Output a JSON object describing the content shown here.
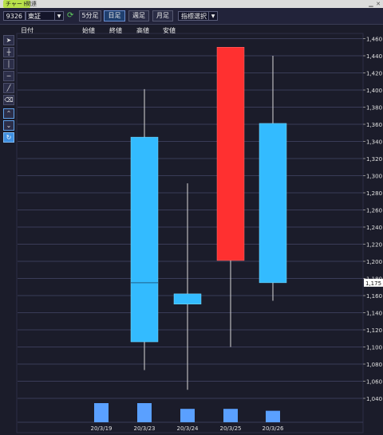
{
  "window": {
    "tab_chart": "チャート",
    "tab_related": "関連"
  },
  "toolbar": {
    "code": "9326",
    "market": "東証",
    "refresh_icon": "refresh-icon",
    "periods": [
      "5分足",
      "日足",
      "週足",
      "月足"
    ],
    "active_period": "日足",
    "indicator_select": "指標選択"
  },
  "header": {
    "date": "日付",
    "open": "始値",
    "close": "終値",
    "high": "高値",
    "low": "安値"
  },
  "sidebar": [
    "cursor-icon",
    "crosshair-icon",
    "vertical-line-icon",
    "horizontal-line-icon",
    "trend-line-icon",
    "eraser-icon",
    "magnet-up-icon",
    "magnet-down-icon",
    "sync-icon"
  ],
  "colors": {
    "up": "#ff3030",
    "down": "#33bbff",
    "volume": "#5aa0ff",
    "grid": "#3a3c58",
    "background": "#1b1c2a"
  },
  "chart_data": {
    "type": "candlestick",
    "categories": [
      "20/3/19",
      "20/3/23",
      "20/3/24",
      "20/3/25",
      "20/3/26"
    ],
    "candles": [
      {
        "date": "20/3/19",
        "open": null,
        "high": null,
        "low": null,
        "close": null
      },
      {
        "date": "20/3/23",
        "open": 1345,
        "high": 1401,
        "low": 1073,
        "close": 1106
      },
      {
        "date": "20/3/24",
        "open": 1162,
        "high": 1291,
        "low": 1050,
        "close": 1150
      },
      {
        "date": "20/3/25",
        "open": 1201,
        "high": 1450,
        "low": 1100,
        "close": 1450
      },
      {
        "date": "20/3/26",
        "open": 1361,
        "high": 1440,
        "low": 1154,
        "close": 1175
      }
    ],
    "volume": [
      10,
      10,
      7,
      7,
      6
    ],
    "current_price": "1,175",
    "current_price_value": 1175,
    "ylim": [
      1020,
      1460
    ],
    "yticks": [
      "1,040",
      "1,060",
      "1,080",
      "1,100",
      "1,120",
      "1,140",
      "1,160",
      "1,180",
      "1,200",
      "1,220",
      "1,240",
      "1,260",
      "1,280",
      "1,300",
      "1,320",
      "1,340",
      "1,360",
      "1,380",
      "1,400",
      "1,420",
      "1,440",
      "1,460"
    ],
    "ytick_values": [
      1040,
      1060,
      1080,
      1100,
      1120,
      1140,
      1160,
      1180,
      1200,
      1220,
      1240,
      1260,
      1280,
      1300,
      1320,
      1340,
      1360,
      1380,
      1400,
      1420,
      1440,
      1460
    ]
  }
}
